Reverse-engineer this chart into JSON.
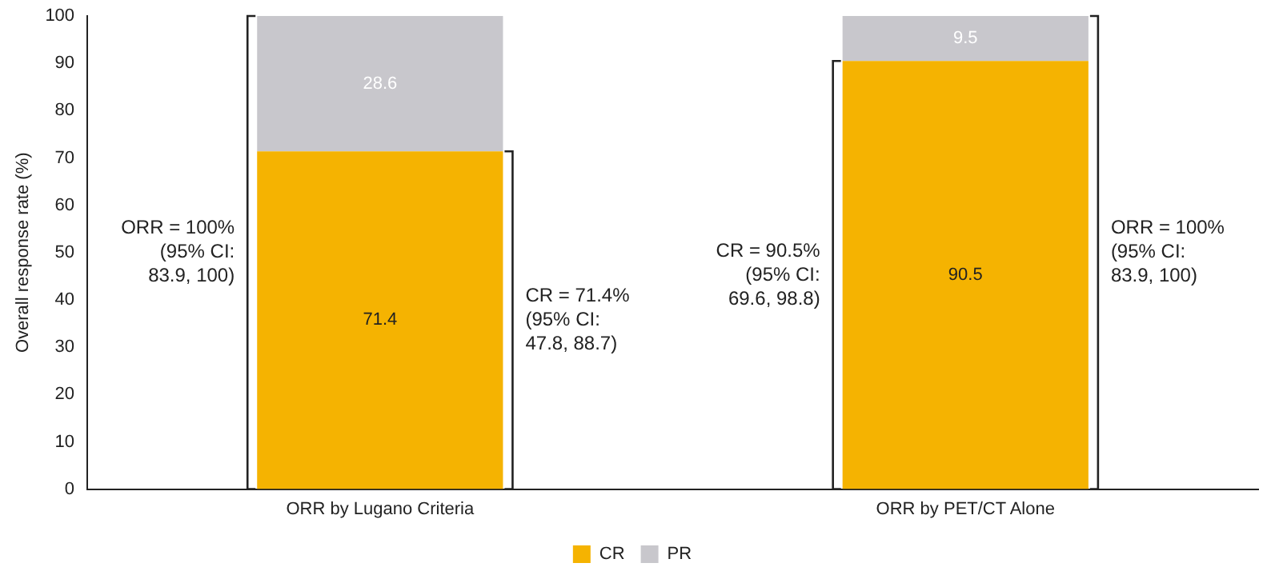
{
  "chart_data": {
    "type": "bar",
    "stacked": true,
    "ylabel": "Overall response rate (%)",
    "categories": [
      "ORR by Lugano Criteria",
      "ORR by PET/CT Alone"
    ],
    "series": [
      {
        "name": "CR",
        "color": "#f5b301",
        "values": [
          71.4,
          90.5
        ]
      },
      {
        "name": "PR",
        "color": "#c8c7cc",
        "values": [
          28.6,
          9.5
        ]
      }
    ],
    "ylim": [
      0,
      100
    ],
    "yticks": [
      0,
      10,
      20,
      30,
      40,
      50,
      60,
      70,
      80,
      90,
      100
    ],
    "data_labels": true,
    "legend": "bottom",
    "grid": false,
    "annotations": [
      "ORR = 100%\n(95% CI:\n83.9, 100)",
      "CR = 71.4%\n(95% CI:\n47.8, 88.7)",
      "CR = 90.5%\n(95% CI:\n69.6, 98.8)",
      "ORR = 100%\n(95% CI:\n83.9, 100)"
    ]
  }
}
